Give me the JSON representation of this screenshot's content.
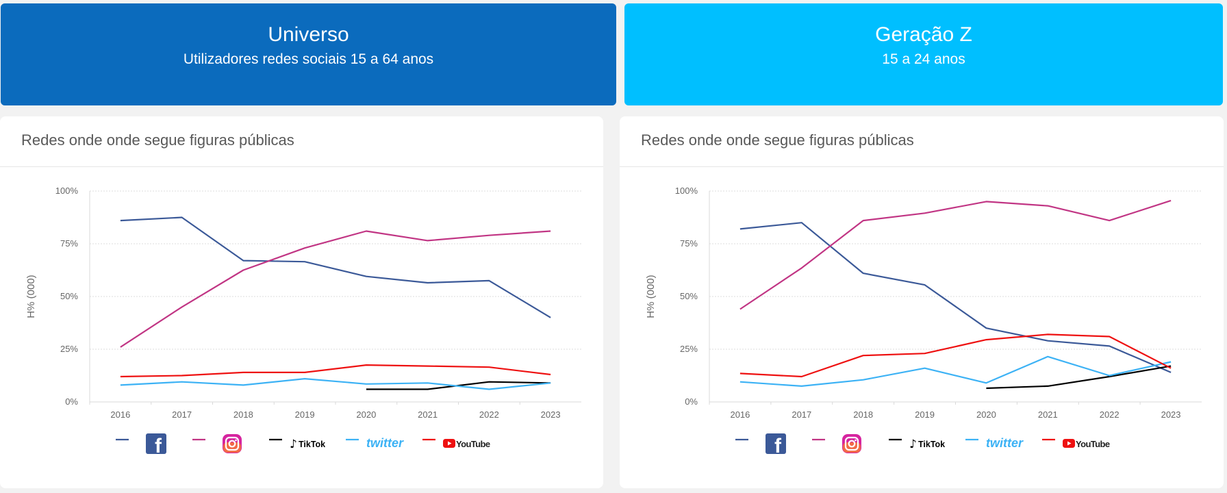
{
  "banners": {
    "left": {
      "title": "Universo",
      "subtitle": "Utilizadores redes sociais 15 a 64 anos"
    },
    "right": {
      "title": "Geração Z",
      "subtitle": "15 a 24 anos"
    }
  },
  "legend": [
    {
      "name": "Facebook",
      "color": "#3b5998",
      "icon": "facebook-icon"
    },
    {
      "name": "Instagram",
      "color": "#c13584",
      "icon": "instagram-icon"
    },
    {
      "name": "TikTok",
      "color": "#000000",
      "icon": "tiktok-icon",
      "label": "TikTok"
    },
    {
      "name": "twitter",
      "color": "#3cb2f5",
      "icon": "twitter-icon",
      "label": "twitter"
    },
    {
      "name": "YouTube",
      "color": "#ee1111",
      "icon": "youtube-icon",
      "label": "YouTube"
    }
  ],
  "chart_data": [
    {
      "type": "line",
      "title": "Redes onde onde segue figuras públicas",
      "ylabel": "H% (000)",
      "xlabel": "",
      "ylim": [
        0,
        100
      ],
      "yticks": [
        "0%",
        "25%",
        "50%",
        "75%",
        "100%"
      ],
      "grid": true,
      "legend_position": "bottom",
      "x": [
        "2016",
        "2017",
        "2018",
        "2019",
        "2020",
        "2021",
        "2022",
        "2023"
      ],
      "series": [
        {
          "name": "Facebook",
          "color": "#3b5998",
          "values": [
            86,
            87.5,
            67,
            66.5,
            59.5,
            56.5,
            57.5,
            40
          ]
        },
        {
          "name": "Instagram",
          "color": "#c13584",
          "values": [
            26,
            45,
            62.5,
            73,
            81,
            76.5,
            79,
            81
          ]
        },
        {
          "name": "TikTok",
          "color": "#000000",
          "values": [
            null,
            null,
            null,
            null,
            6,
            6,
            9.5,
            9
          ]
        },
        {
          "name": "twitter",
          "color": "#3cb2f5",
          "values": [
            8,
            9.5,
            8,
            11,
            8.5,
            9,
            6,
            9
          ]
        },
        {
          "name": "YouTube",
          "color": "#ee1111",
          "values": [
            12,
            12.5,
            14,
            14,
            17.5,
            17,
            16.5,
            13
          ]
        }
      ]
    },
    {
      "type": "line",
      "title": "Redes onde onde segue figuras públicas",
      "ylabel": "H% (000)",
      "xlabel": "",
      "ylim": [
        0,
        100
      ],
      "yticks": [
        "0%",
        "25%",
        "50%",
        "75%",
        "100%"
      ],
      "grid": true,
      "legend_position": "bottom",
      "x": [
        "2016",
        "2017",
        "2018",
        "2019",
        "2020",
        "2021",
        "2022",
        "2023"
      ],
      "series": [
        {
          "name": "Facebook",
          "color": "#3b5998",
          "values": [
            82,
            85,
            61,
            55.5,
            35,
            29,
            26.5,
            14
          ]
        },
        {
          "name": "Instagram",
          "color": "#c13584",
          "values": [
            44,
            63.5,
            86,
            89.5,
            95,
            93,
            86,
            95.5
          ]
        },
        {
          "name": "TikTok",
          "color": "#000000",
          "values": [
            null,
            null,
            null,
            null,
            6.5,
            7.5,
            12,
            17
          ]
        },
        {
          "name": "twitter",
          "color": "#3cb2f5",
          "values": [
            9.5,
            7.5,
            10.5,
            16,
            9,
            21.5,
            12.5,
            19
          ]
        },
        {
          "name": "YouTube",
          "color": "#ee1111",
          "values": [
            13.5,
            12,
            22,
            23,
            29.5,
            32,
            31,
            16
          ]
        }
      ]
    }
  ]
}
